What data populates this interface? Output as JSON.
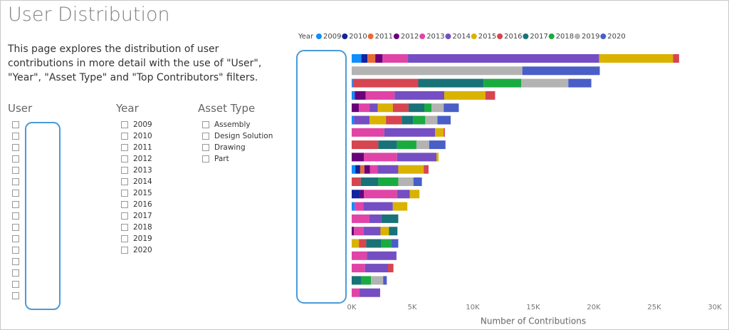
{
  "page": {
    "title": "User Distribution",
    "description": "This page explores the distribution of user contributions in more detail with the use of \"User\", \"Year\", \"Asset Type\" and \"Top Contributors\" filters.",
    "user_slicer": {
      "title": "User"
    },
    "year_slicer": {
      "title": "Year",
      "items": [
        "2009",
        "2010",
        "2011",
        "2012",
        "2013",
        "2014",
        "2015",
        "2016",
        "2017",
        "2018",
        "2019",
        "2020"
      ]
    },
    "asset_slicer": {
      "title": "Asset Type",
      "items": [
        "Assembly",
        "Design Solution",
        "Drawing",
        "Part"
      ]
    }
  },
  "chart_data": {
    "type": "stacked-hbar",
    "legend_title": "Year",
    "xlabel": "Number of Contributions",
    "categories": [
      null,
      null,
      null,
      null,
      null,
      null,
      null,
      null,
      null,
      null,
      null,
      null,
      null,
      null,
      null,
      null,
      null,
      null,
      null,
      null
    ],
    "xlim": [
      0,
      30000
    ],
    "xticks": [
      {
        "value": 0,
        "label": "0K"
      },
      {
        "value": 5000,
        "label": "5K"
      },
      {
        "value": 10000,
        "label": "10K"
      },
      {
        "value": 15000,
        "label": "15K"
      },
      {
        "value": 20000,
        "label": "20K"
      },
      {
        "value": 25000,
        "label": "25K"
      },
      {
        "value": 30000,
        "label": "30K"
      }
    ],
    "series": [
      {
        "name": "2009",
        "color": "#118DFF",
        "values": [
          800,
          null,
          100,
          250,
          null,
          180,
          null,
          null,
          null,
          300,
          null,
          null,
          250,
          null,
          null,
          null,
          null,
          null,
          null,
          null
        ]
      },
      {
        "name": "2010",
        "color": "#12239E",
        "values": [
          500,
          null,
          null,
          null,
          null,
          null,
          null,
          null,
          null,
          400,
          null,
          700,
          null,
          null,
          null,
          null,
          null,
          null,
          null,
          null
        ]
      },
      {
        "name": "2011",
        "color": "#E66C37",
        "values": [
          650,
          null,
          null,
          null,
          null,
          null,
          null,
          null,
          null,
          350,
          null,
          null,
          null,
          null,
          null,
          null,
          null,
          null,
          null,
          null
        ]
      },
      {
        "name": "2012",
        "color": "#6B007B",
        "values": [
          600,
          null,
          null,
          900,
          600,
          null,
          null,
          null,
          1000,
          450,
          null,
          300,
          null,
          null,
          180,
          null,
          null,
          null,
          null,
          null
        ]
      },
      {
        "name": "2013",
        "color": "#E044A7",
        "values": [
          2100,
          null,
          null,
          2400,
          900,
          null,
          2700,
          null,
          2750,
          650,
          null,
          2750,
          700,
          1450,
          800,
          null,
          1250,
          1100,
          null,
          650
        ]
      },
      {
        "name": "2014",
        "color": "#744EC2",
        "values": [
          15800,
          null,
          null,
          4100,
          650,
          1300,
          4200,
          null,
          3250,
          1700,
          null,
          1050,
          2450,
          1000,
          1400,
          null,
          2450,
          1900,
          null,
          1700
        ]
      },
      {
        "name": "2015",
        "color": "#D9B300",
        "values": [
          6100,
          null,
          null,
          3400,
          1250,
          1350,
          700,
          null,
          180,
          2100,
          null,
          800,
          1200,
          null,
          700,
          600,
          null,
          null,
          null,
          null
        ]
      },
      {
        "name": "2016",
        "color": "#D64550",
        "values": [
          500,
          null,
          5400,
          800,
          1300,
          1300,
          100,
          2200,
          null,
          400,
          750,
          null,
          null,
          null,
          null,
          600,
          null,
          450,
          null,
          null
        ]
      },
      {
        "name": "2017",
        "color": "#197278",
        "values": [
          null,
          null,
          5400,
          null,
          1300,
          950,
          null,
          1550,
          null,
          null,
          1450,
          null,
          null,
          1400,
          700,
          1250,
          null,
          null,
          800,
          null
        ]
      },
      {
        "name": "2018",
        "color": "#1AAB40",
        "values": [
          null,
          null,
          3100,
          null,
          600,
          1000,
          null,
          1600,
          null,
          null,
          1650,
          null,
          null,
          null,
          null,
          800,
          null,
          null,
          800,
          null
        ]
      },
      {
        "name": "2019",
        "color": "#B3B3B3",
        "values": [
          null,
          14100,
          3900,
          null,
          1000,
          1000,
          null,
          1050,
          null,
          null,
          1250,
          null,
          null,
          null,
          null,
          null,
          null,
          null,
          1000,
          null
        ]
      },
      {
        "name": "2020",
        "color": "#4A5EC8",
        "values": [
          null,
          6400,
          1900,
          null,
          1250,
          1100,
          null,
          1350,
          null,
          null,
          700,
          null,
          null,
          null,
          null,
          600,
          null,
          null,
          300,
          null
        ]
      }
    ]
  }
}
